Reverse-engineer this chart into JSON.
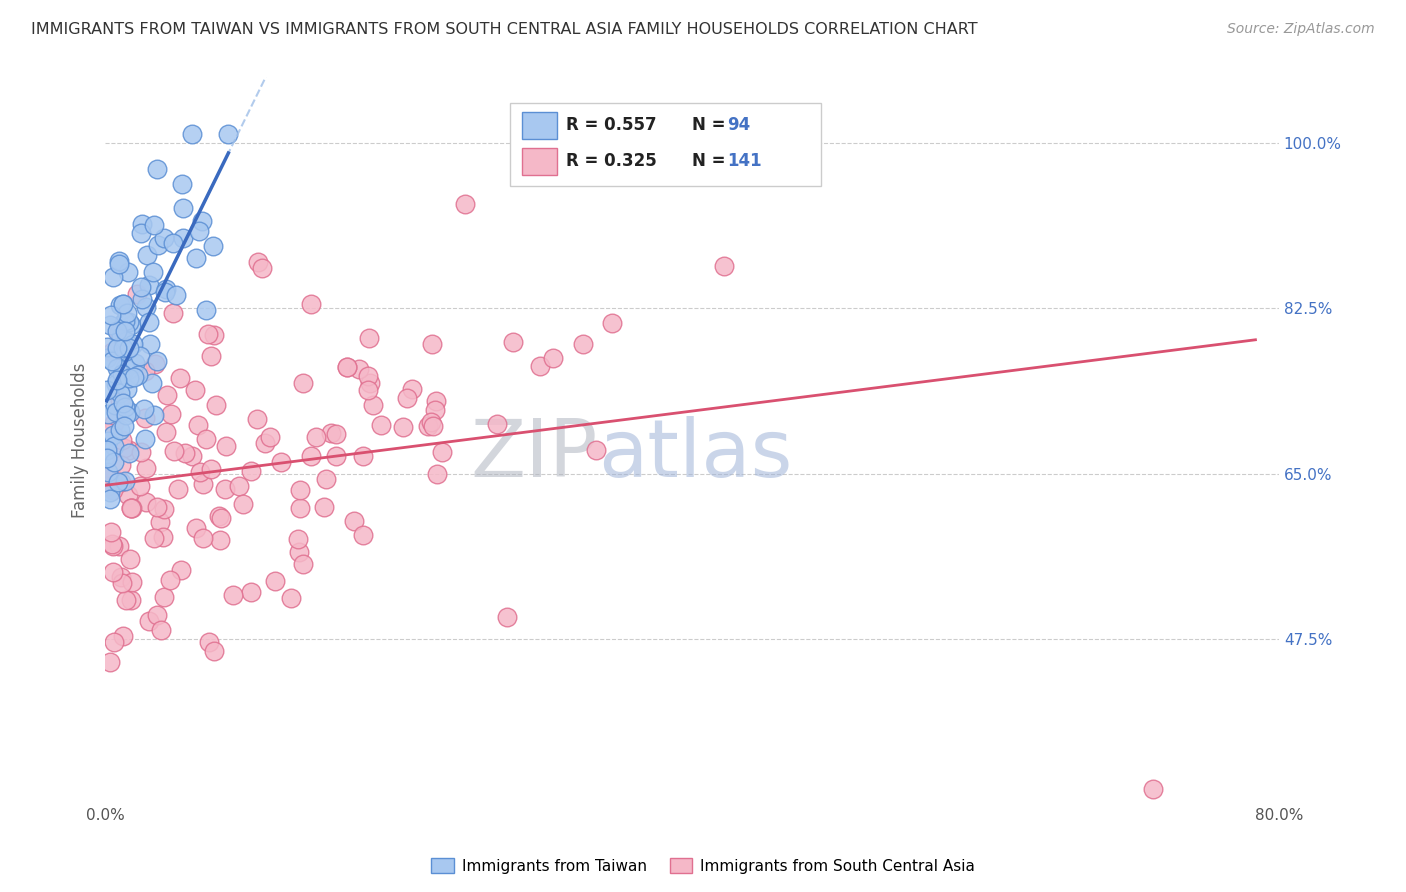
{
  "title": "IMMIGRANTS FROM TAIWAN VS IMMIGRANTS FROM SOUTH CENTRAL ASIA FAMILY HOUSEHOLDS CORRELATION CHART",
  "source": "Source: ZipAtlas.com",
  "ylabel": "Family Households",
  "x_min": 0.0,
  "x_max": 0.8,
  "y_min": 0.3,
  "y_max": 1.07,
  "y_ticks": [
    0.475,
    0.65,
    0.825,
    1.0
  ],
  "y_tick_labels": [
    "47.5%",
    "65.0%",
    "82.5%",
    "100.0%"
  ],
  "x_tick_positions": [
    0.0,
    0.8
  ],
  "x_tick_labels": [
    "0.0%",
    "80.0%"
  ],
  "taiwan_R": 0.557,
  "taiwan_N": 94,
  "sca_R": 0.325,
  "sca_N": 141,
  "taiwan_color": "#a8c8f0",
  "taiwan_edge_color": "#5b8fd4",
  "taiwan_line_color": "#3a6abf",
  "taiwan_line_dash_color": "#9fbfe8",
  "sca_color": "#f5b8c8",
  "sca_edge_color": "#e07090",
  "sca_line_color": "#d95070",
  "watermark_zip_color": "#c8cdd8",
  "watermark_atlas_color": "#b8c4e0",
  "legend_labels": [
    "Immigrants from Taiwan",
    "Immigrants from South Central Asia"
  ],
  "background_color": "#ffffff",
  "grid_color": "#cccccc"
}
